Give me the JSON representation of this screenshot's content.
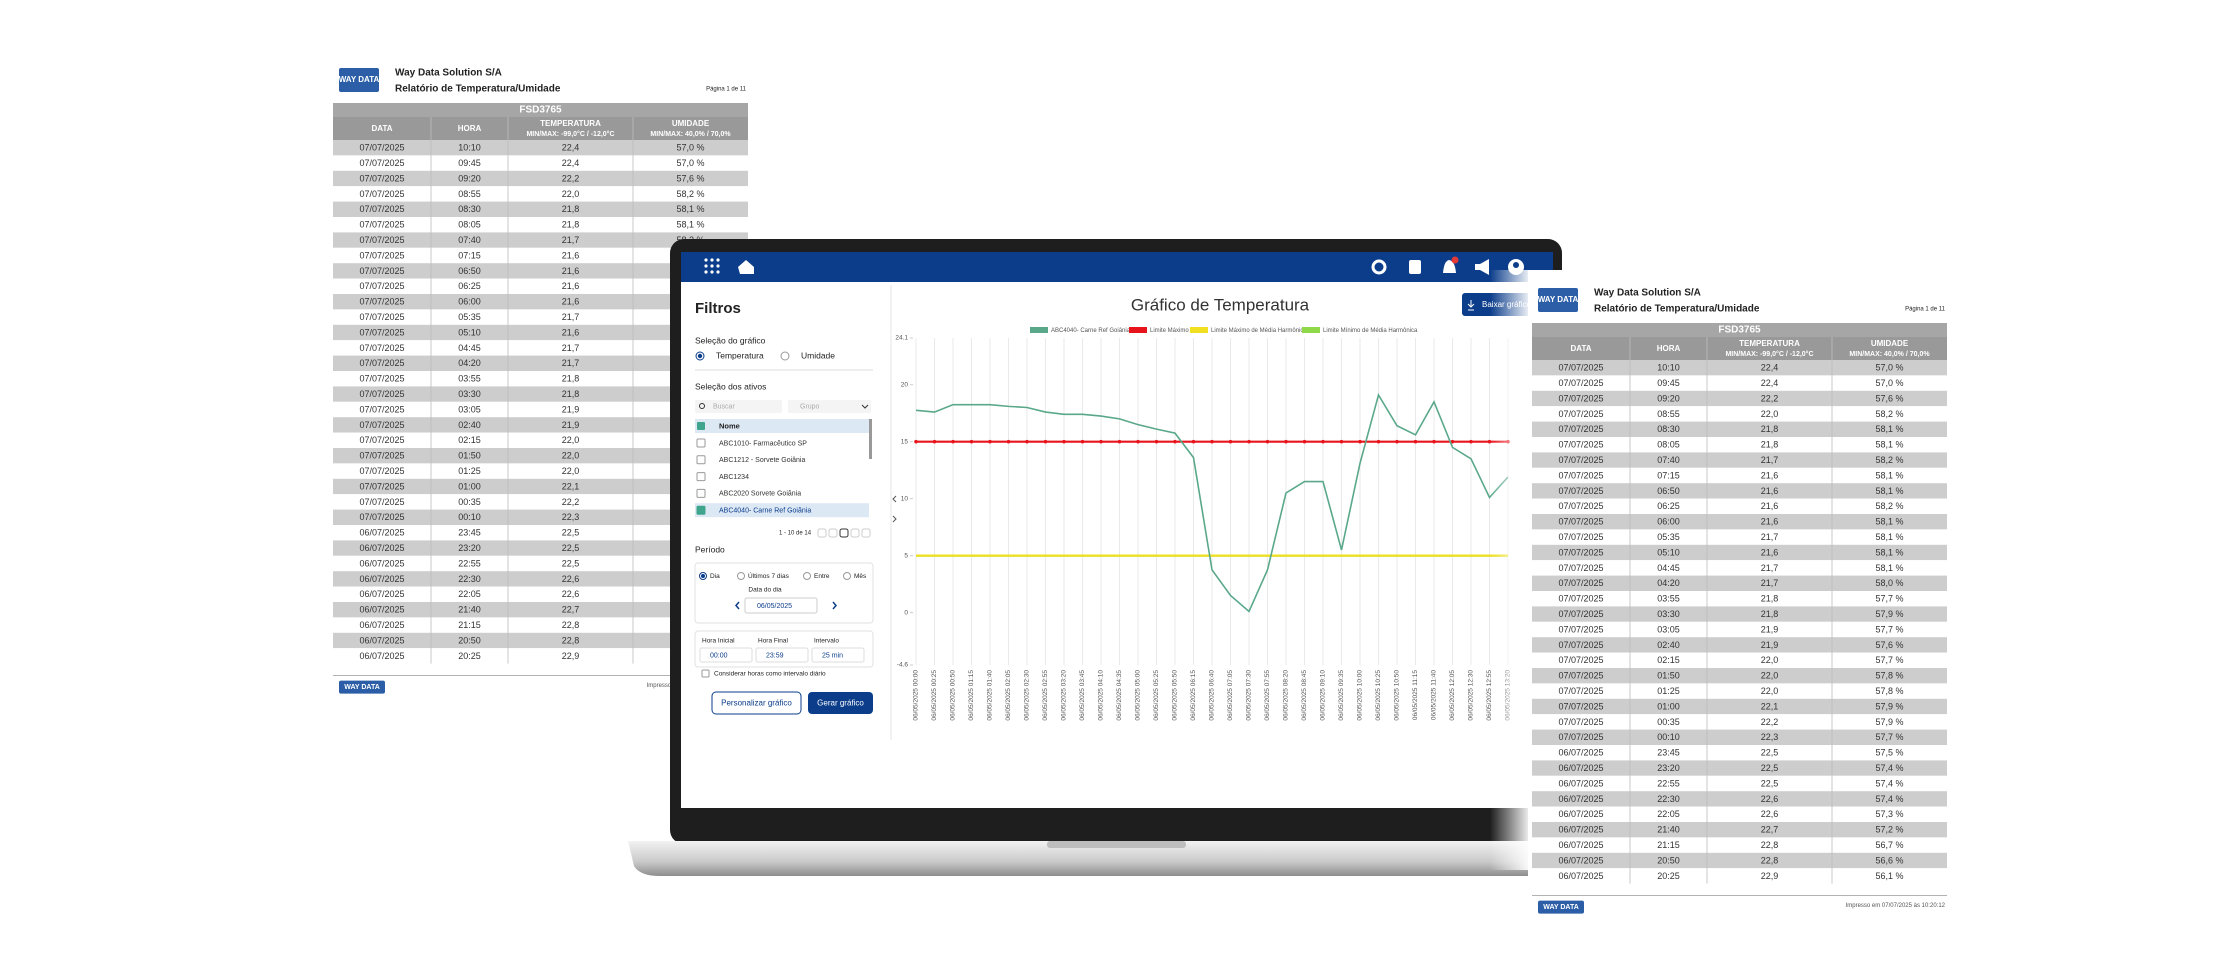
{
  "report": {
    "logo": "WAY DATA",
    "company": "Way Data Solution S/A",
    "title": "Relatório de Temperatura/Umidade",
    "page": "Página 1 de 11",
    "device": "FSD3765",
    "columns": [
      {
        "name": "DATA"
      },
      {
        "name": "HORA"
      },
      {
        "name": "TEMPERATURA",
        "range": "MIN/MAX: -99,0°C / -12,0°C"
      },
      {
        "name": "UMIDADE",
        "range": "MIN/MAX: 40,0% / 70,0%"
      }
    ],
    "rows": [
      [
        "07/07/2025",
        "10:10",
        "22,4",
        "57,0 %"
      ],
      [
        "07/07/2025",
        "09:45",
        "22,4",
        "57,0 %"
      ],
      [
        "07/07/2025",
        "09:20",
        "22,2",
        "57,6 %"
      ],
      [
        "07/07/2025",
        "08:55",
        "22,0",
        "58,2 %"
      ],
      [
        "07/07/2025",
        "08:30",
        "21,8",
        "58,1 %"
      ],
      [
        "07/07/2025",
        "08:05",
        "21,8",
        "58,1 %"
      ],
      [
        "07/07/2025",
        "07:40",
        "21,7",
        "58,2 %"
      ],
      [
        "07/07/2025",
        "07:15",
        "21,6",
        "58,1 %"
      ],
      [
        "07/07/2025",
        "06:50",
        "21,6",
        "58,1 %"
      ],
      [
        "07/07/2025",
        "06:25",
        "21,6",
        "58,2 %"
      ],
      [
        "07/07/2025",
        "06:00",
        "21,6",
        "58,1 %"
      ],
      [
        "07/07/2025",
        "05:35",
        "21,7",
        "58,1 %"
      ],
      [
        "07/07/2025",
        "05:10",
        "21,6",
        "58,1 %"
      ],
      [
        "07/07/2025",
        "04:45",
        "21,7",
        "58,1 %"
      ],
      [
        "07/07/2025",
        "04:20",
        "21,7",
        "58,0 %"
      ],
      [
        "07/07/2025",
        "03:55",
        "21,8",
        "57,7 %"
      ],
      [
        "07/07/2025",
        "03:30",
        "21,8",
        "57,9 %"
      ],
      [
        "07/07/2025",
        "03:05",
        "21,9",
        "57,7 %"
      ],
      [
        "07/07/2025",
        "02:40",
        "21,9",
        "57,6 %"
      ],
      [
        "07/07/2025",
        "02:15",
        "22,0",
        "57,7 %"
      ],
      [
        "07/07/2025",
        "01:50",
        "22,0",
        "57,8 %"
      ],
      [
        "07/07/2025",
        "01:25",
        "22,0",
        "57,8 %"
      ],
      [
        "07/07/2025",
        "01:00",
        "22,1",
        "57,9 %"
      ],
      [
        "07/07/2025",
        "00:35",
        "22,2",
        "57,9 %"
      ],
      [
        "07/07/2025",
        "00:10",
        "22,3",
        "57,7 %"
      ],
      [
        "06/07/2025",
        "23:45",
        "22,5",
        "57,5 %"
      ],
      [
        "06/07/2025",
        "23:20",
        "22,5",
        "57,4 %"
      ],
      [
        "06/07/2025",
        "22:55",
        "22,5",
        "57,4 %"
      ],
      [
        "06/07/2025",
        "22:30",
        "22,6",
        "57,4 %"
      ],
      [
        "06/07/2025",
        "22:05",
        "22,6",
        "57,3 %"
      ],
      [
        "06/07/2025",
        "21:40",
        "22,7",
        "57,2 %"
      ],
      [
        "06/07/2025",
        "21:15",
        "22,8",
        "56,7 %"
      ],
      [
        "06/07/2025",
        "20:50",
        "22,8",
        "56,6 %"
      ],
      [
        "06/07/2025",
        "20:25",
        "22,9",
        "56,1 %"
      ]
    ],
    "printed": "Impresso em 07/07/2025 às 10:20:12"
  },
  "app": {
    "title": "Filtros",
    "chart_selection": "Seleção do gráfico",
    "chart_options": [
      "Temperatura",
      "Umidade"
    ],
    "assets": "Seleção dos ativos",
    "search": "Buscar",
    "group": "Grupo",
    "list_header": "Nome",
    "items": [
      "ABC1010- Farmacêutico SP",
      "ABC1212 - Sorvete Goiânia",
      "ABC1234",
      "ABC2020 Sorvete Goiânia",
      "ABC4040- Carne Ref Goiânia"
    ],
    "pagination": "1 - 10 de 14",
    "period": "Período",
    "period_options": [
      "Dia",
      "Últimos 7 dias",
      "Entre",
      "Mês"
    ],
    "date_label": "Data do dia",
    "date": "06/05/2025",
    "start_label": "Hora Inicial",
    "start": "00:00",
    "end_label": "Hora Final",
    "end": "23:59",
    "interval_label": "Intervalo",
    "interval": "25 min",
    "daily": "Considerar horas como intervalo diário",
    "customize": "Personalizar gráfico",
    "generate": "Gerar gráfico",
    "download": "Baixar gráfico"
  },
  "chart_data": {
    "type": "line",
    "title": "Gráfico de Temperatura",
    "categories": [
      "06/05/2025 00:00",
      "06/05/2025 00:25",
      "06/05/2025 00:50",
      "06/05/2025 01:15",
      "06/05/2025 01:40",
      "06/05/2025 02:05",
      "06/05/2025 02:30",
      "06/05/2025 02:55",
      "06/05/2025 03:20",
      "06/05/2025 03:45",
      "06/05/2025 04:10",
      "06/05/2025 04:35",
      "06/05/2025 05:00",
      "06/05/2025 05:25",
      "06/05/2025 05:50",
      "06/05/2025 06:15",
      "06/05/2025 06:40",
      "06/05/2025 07:05",
      "06/05/2025 07:30",
      "06/05/2025 07:55",
      "06/05/2025 08:20",
      "06/05/2025 08:45",
      "06/05/2025 09:10",
      "06/05/2025 09:35",
      "06/05/2025 10:00",
      "06/05/2025 10:25",
      "06/05/2025 10:50",
      "06/05/2025 11:15",
      "06/05/2025 11:40",
      "06/05/2025 12:05",
      "06/05/2025 12:30",
      "06/05/2025 12:55",
      "06/05/2025 13:20"
    ],
    "series": [
      {
        "name": "ABC4040- Carne Ref Goiânia",
        "color": "#5aa88a",
        "values": [
          17.75,
          17.6,
          18.25,
          18.25,
          18.25,
          18.1,
          18.0,
          17.6,
          17.4,
          17.4,
          17.25,
          17.0,
          16.5,
          16.1,
          15.75,
          13.6,
          3.75,
          1.5,
          0.1,
          3.75,
          10.5,
          11.5,
          11.5,
          5.5,
          13.1,
          19.1,
          16.4,
          15.6,
          18.5,
          14.5,
          13.5,
          10.1,
          11.9
        ]
      }
    ],
    "limits": [
      {
        "name": "Limite Máximo",
        "color": "#e8141c",
        "value": 15
      },
      {
        "name": "Limite Máximo de Média Harmônica",
        "color": "#f0e020",
        "value": 5
      },
      {
        "name": "Limite Mínimo de Média Harmônica",
        "color": "#8ed84a",
        "value": 5
      }
    ],
    "ylim": [
      -4.6,
      24.1
    ],
    "yticks": [
      24.1,
      20,
      15,
      10,
      5,
      0,
      -4.6
    ],
    "grid": true
  }
}
